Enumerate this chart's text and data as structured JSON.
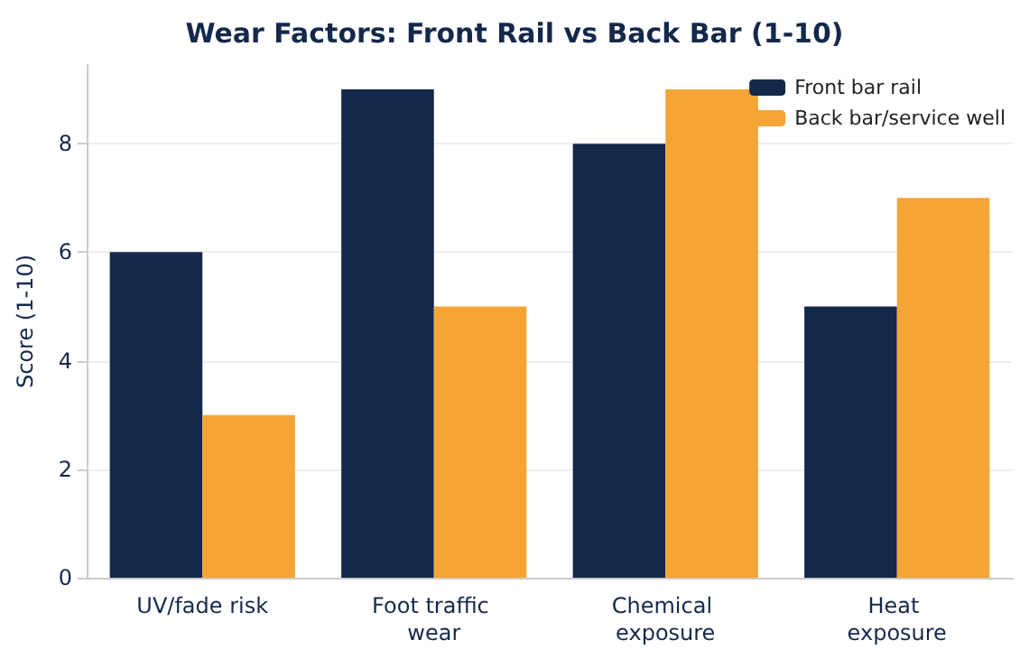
{
  "chart_data": {
    "type": "bar",
    "title": "Wear Factors: Front Rail vs Back Bar (1-10)",
    "ylabel": "Score (1-10)",
    "categories": [
      "UV/fade risk",
      "Foot traffic wear",
      "Chemical exposure",
      "Heat exposure"
    ],
    "series": [
      {
        "name": "Front bar rail",
        "color": "#14284b",
        "values": [
          6,
          9,
          8,
          5
        ]
      },
      {
        "name": "Back bar/service well",
        "color": "#f5a535",
        "values": [
          3,
          5,
          9,
          7
        ]
      }
    ],
    "ylim": [
      0,
      9.45
    ],
    "yticks": [
      0,
      2,
      4,
      6,
      8
    ],
    "grid": "y",
    "legend": "top right"
  }
}
